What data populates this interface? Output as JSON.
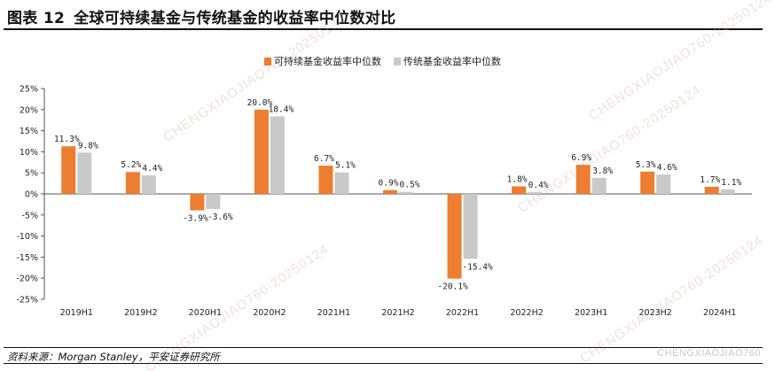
{
  "header": {
    "figure_no": "图表 12",
    "title": "全球可持续基金与传统基金的收益率中位数对比"
  },
  "footer": {
    "source": "资料来源：Morgan Stanley，平安证券研究所",
    "watermark_id": "CHENGXIAOJIAO760"
  },
  "watermark_text": "CHENGXIAOJIAO760-20250124",
  "colors": {
    "sustainable": "#ed7d31",
    "traditional": "#c9c9c9"
  },
  "chart_data": {
    "type": "bar",
    "categories": [
      "2019H1",
      "2019H2",
      "2020H1",
      "2020H2",
      "2021H1",
      "2021H2",
      "2022H1",
      "2022H2",
      "2023H1",
      "2023H2",
      "2024H1"
    ],
    "series": [
      {
        "name": "可持续基金收益率中位数",
        "values": [
          11.3,
          5.2,
          -3.9,
          20.0,
          6.7,
          0.9,
          -20.1,
          1.8,
          6.9,
          5.3,
          1.7
        ],
        "labels": [
          "11.3%",
          "5.2%",
          "-3.9%",
          "20.0%",
          "6.7%",
          "0.9%",
          "-20.1%",
          "1.8%",
          "6.9%",
          "5.3%",
          "1.7%"
        ]
      },
      {
        "name": "传统基金收益率中位数",
        "values": [
          9.8,
          4.4,
          -3.6,
          18.4,
          5.1,
          0.5,
          -15.4,
          0.4,
          3.8,
          4.6,
          1.1
        ],
        "labels": [
          "9.8%",
          "4.4%",
          "-3.6%",
          "18.4%",
          "5.1%",
          "0.5%",
          "-15.4%",
          "0.4%",
          "3.8%",
          "4.6%",
          "1.1%"
        ]
      }
    ],
    "yticks": [
      25,
      20,
      15,
      10,
      5,
      0,
      -5,
      -10,
      -15,
      -20,
      -25
    ],
    "ytick_labels": [
      "25%",
      "20%",
      "15%",
      "10%",
      "5%",
      "0%",
      "-5%",
      "-10%",
      "-15%",
      "-20%",
      "-25%"
    ],
    "ylim": [
      -25,
      25
    ],
    "legend_position": "top-center",
    "grid": false
  }
}
